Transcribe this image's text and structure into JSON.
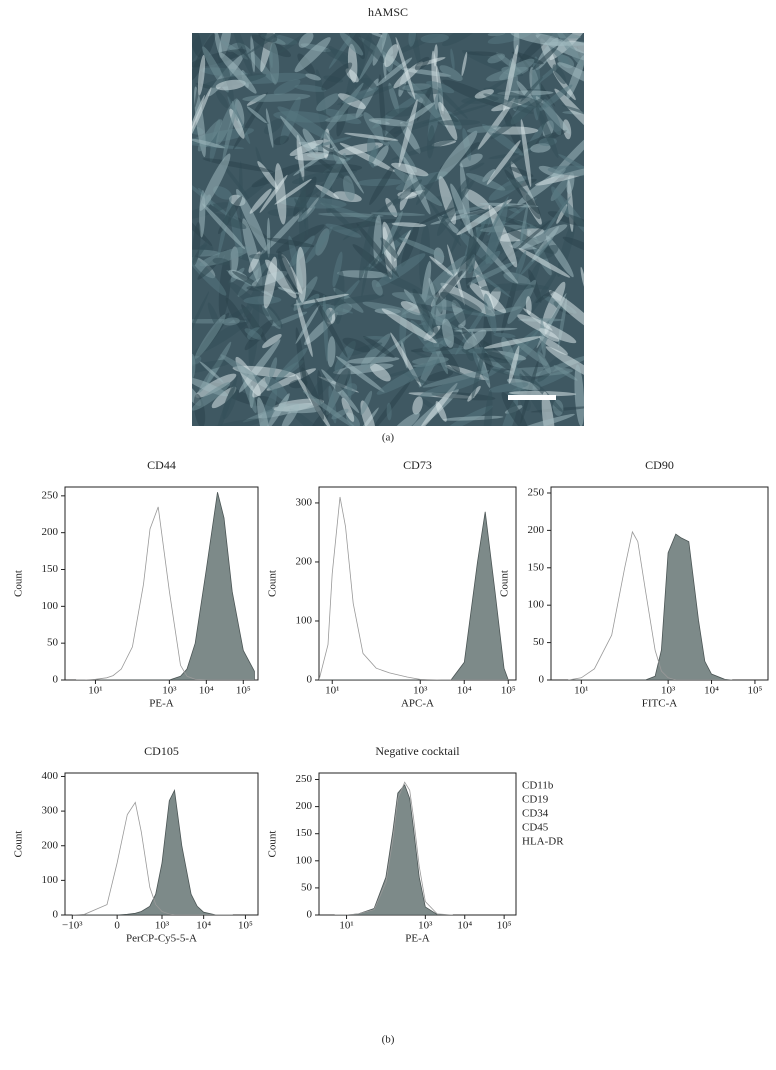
{
  "figure": {
    "title": "hAMSC",
    "label_a": "(a)",
    "label_b": "(b)"
  },
  "chart_data": [
    {
      "type": "area",
      "title": "CD44",
      "x_label": "PE-A",
      "y_label": "Count",
      "xscale": "log",
      "x": [
        3,
        5,
        10,
        20,
        30,
        50,
        100,
        200,
        300,
        500,
        1000,
        2000,
        3000,
        5000,
        10000,
        20000,
        30000,
        50000,
        100000,
        200000
      ],
      "series": [
        {
          "color": "#7d8a89",
          "filled": true,
          "values": [
            0,
            0,
            0,
            0,
            0,
            0,
            0,
            0,
            0,
            0,
            0,
            5,
            15,
            50,
            150,
            255,
            220,
            120,
            40,
            12
          ]
        },
        {
          "color": "#999999",
          "filled": false,
          "values": [
            0,
            0,
            1,
            3,
            6,
            15,
            45,
            130,
            205,
            235,
            120,
            20,
            5,
            1,
            0,
            0,
            0,
            0,
            0,
            0
          ]
        }
      ],
      "xlim": [
        1.5,
        250000
      ],
      "ylim": [
        0,
        262
      ],
      "xticks": [
        {
          "value": 10,
          "label": "10¹"
        },
        {
          "value": 1000,
          "label": "10³"
        },
        {
          "value": 10000,
          "label": "10⁴"
        },
        {
          "value": 100000,
          "label": "10⁵"
        }
      ],
      "yticks": [
        0,
        50,
        100,
        150,
        200,
        250
      ]
    },
    {
      "type": "area",
      "title": "CD73",
      "x_label": "APC-A",
      "y_label": "Count",
      "xscale": "log",
      "x": [
        5,
        8,
        10,
        15,
        20,
        30,
        50,
        100,
        200,
        500,
        1000,
        3000,
        5000,
        10000,
        20000,
        30000,
        50000,
        80000,
        100000
      ],
      "series": [
        {
          "color": "#7d8a89",
          "filled": true,
          "values": [
            0,
            0,
            0,
            0,
            0,
            0,
            0,
            0,
            0,
            0,
            0,
            0,
            0,
            30,
            200,
            285,
            150,
            20,
            0
          ]
        },
        {
          "color": "#999999",
          "filled": false,
          "values": [
            0,
            60,
            180,
            310,
            260,
            130,
            45,
            20,
            12,
            5,
            1,
            0,
            0,
            0,
            0,
            0,
            0,
            0,
            0
          ]
        }
      ],
      "xlim": [
        5,
        150000
      ],
      "ylim": [
        0,
        327
      ],
      "xticks": [
        {
          "value": 10,
          "label": "10¹"
        },
        {
          "value": 1000,
          "label": "10³"
        },
        {
          "value": 10000,
          "label": "10⁴"
        },
        {
          "value": 100000,
          "label": "10⁵"
        }
      ],
      "yticks": [
        0,
        100,
        200,
        300
      ]
    },
    {
      "type": "area",
      "title": "CD90",
      "x_label": "FITC-A",
      "y_label": "Count",
      "xscale": "log",
      "x": [
        5,
        10,
        20,
        50,
        100,
        150,
        200,
        300,
        500,
        700,
        1000,
        1500,
        2000,
        3000,
        5000,
        7000,
        10000,
        20000,
        30000
      ],
      "series": [
        {
          "color": "#7d8a89",
          "filled": true,
          "values": [
            0,
            0,
            0,
            0,
            0,
            0,
            0,
            0,
            5,
            40,
            170,
            195,
            190,
            185,
            80,
            25,
            8,
            1,
            0
          ]
        },
        {
          "color": "#999999",
          "filled": false,
          "values": [
            0,
            3,
            15,
            60,
            150,
            198,
            185,
            120,
            40,
            12,
            3,
            0,
            0,
            0,
            0,
            0,
            0,
            0,
            0
          ]
        }
      ],
      "xlim": [
        2,
        200000
      ],
      "ylim": [
        0,
        258
      ],
      "xticks": [
        {
          "value": 10,
          "label": "10¹"
        },
        {
          "value": 1000,
          "label": "10³"
        },
        {
          "value": 10000,
          "label": "10⁴"
        },
        {
          "value": 100000,
          "label": "10⁵"
        }
      ],
      "yticks": [
        0,
        50,
        100,
        150,
        200,
        250
      ]
    },
    {
      "type": "area",
      "title": "CD105",
      "x_label": "PerCP-Cy5-5-A",
      "y_label": "Count",
      "xscale": "biexponential",
      "x": [
        -1000,
        -500,
        -100,
        0,
        100,
        200,
        300,
        500,
        700,
        1000,
        1500,
        2000,
        3000,
        5000,
        7000,
        10000,
        20000,
        50000
      ],
      "series": [
        {
          "color": "#7d8a89",
          "filled": true,
          "values": [
            0,
            0,
            0,
            0,
            2,
            5,
            10,
            25,
            60,
            150,
            330,
            360,
            200,
            60,
            25,
            8,
            0,
            0
          ]
        },
        {
          "color": "#999999",
          "filled": false,
          "values": [
            0,
            2,
            30,
            150,
            290,
            325,
            240,
            80,
            30,
            10,
            3,
            0,
            0,
            0,
            0,
            0,
            0,
            0
          ]
        }
      ],
      "xlim": [
        -1500,
        200000
      ],
      "ylim": [
        0,
        410
      ],
      "xticks": [
        {
          "value": -1000,
          "label": "−10³"
        },
        0,
        {
          "value": 1000,
          "label": "10³"
        },
        {
          "value": 10000,
          "label": "10⁴"
        },
        {
          "value": 100000,
          "label": "10⁵"
        }
      ],
      "yticks": [
        0,
        100,
        200,
        300,
        400
      ]
    },
    {
      "type": "area",
      "title": "Negative cocktail",
      "x_label": "PE-A",
      "y_label": "Count",
      "xscale": "log",
      "x": [
        5,
        10,
        20,
        50,
        100,
        150,
        200,
        300,
        400,
        500,
        700,
        1000,
        2000,
        5000
      ],
      "series": [
        {
          "color": "#7d8a89",
          "filled": true,
          "values": [
            0,
            0,
            2,
            12,
            70,
            155,
            225,
            240,
            215,
            160,
            70,
            15,
            1,
            0
          ]
        },
        {
          "color": "#999999",
          "filled": false,
          "values": [
            0,
            0,
            2,
            10,
            60,
            140,
            215,
            245,
            230,
            180,
            90,
            25,
            2,
            0
          ]
        }
      ],
      "xlim": [
        2,
        200000
      ],
      "ylim": [
        0,
        262
      ],
      "xticks": [
        {
          "value": 10,
          "label": "10¹"
        },
        {
          "value": 1000,
          "label": "10³"
        },
        {
          "value": 10000,
          "label": "10⁴"
        },
        {
          "value": 100000,
          "label": "10⁵"
        }
      ],
      "yticks": [
        0,
        50,
        100,
        150,
        200,
        250
      ],
      "annotations": [
        "CD11b",
        "CD19",
        "CD34",
        "CD45",
        "HLA-DR"
      ]
    }
  ]
}
